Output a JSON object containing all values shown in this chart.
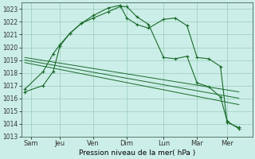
{
  "xlabel": "Pression niveau de la mer( hPa )",
  "background_color": "#cceee8",
  "grid_color": "#99ccbb",
  "line_color": "#1a6b2a",
  "ylim": [
    1013,
    1023.5
  ],
  "xlim": [
    -0.1,
    6.8
  ],
  "xtick_labels": [
    "Sam",
    "Jeu",
    "Ven",
    "Dim",
    "Lun",
    "Mar",
    "Mer"
  ],
  "xtick_positions": [
    0.18,
    1.05,
    2.05,
    3.05,
    4.15,
    5.15,
    6.05
  ],
  "ytick_values": [
    1013,
    1014,
    1015,
    1016,
    1017,
    1018,
    1019,
    1020,
    1021,
    1022,
    1023
  ],
  "series": [
    {
      "x": [
        0.0,
        0.55,
        0.85,
        1.05,
        1.35,
        1.7,
        2.05,
        2.5,
        2.85,
        3.05,
        3.35,
        3.7,
        4.15,
        4.5,
        4.85,
        5.15,
        5.5,
        5.85,
        6.05,
        6.4
      ],
      "y": [
        1016.5,
        1017.0,
        1018.1,
        1020.1,
        1021.1,
        1021.9,
        1022.3,
        1022.8,
        1023.2,
        1023.2,
        1022.4,
        1021.8,
        1019.2,
        1019.1,
        1019.3,
        1017.2,
        1016.9,
        1016.1,
        1014.2,
        1013.6
      ],
      "marker": true
    },
    {
      "x": [
        0.0,
        0.55,
        0.85,
        1.05,
        1.35,
        1.7,
        2.05,
        2.5,
        2.85,
        3.05,
        3.35,
        3.7,
        4.15,
        4.5,
        4.85,
        5.15,
        5.5,
        5.85,
        6.05,
        6.4
      ],
      "y": [
        1016.7,
        1018.1,
        1019.5,
        1020.2,
        1021.1,
        1021.9,
        1022.5,
        1023.1,
        1023.3,
        1022.3,
        1021.8,
        1021.5,
        1022.2,
        1022.3,
        1021.7,
        1019.2,
        1019.1,
        1018.5,
        1014.1,
        1013.7
      ],
      "marker": true
    },
    {
      "x": [
        0.0,
        6.4
      ],
      "y": [
        1019.2,
        1016.5
      ],
      "marker": false
    },
    {
      "x": [
        0.0,
        6.4
      ],
      "y": [
        1019.0,
        1016.0
      ],
      "marker": false
    },
    {
      "x": [
        0.0,
        6.4
      ],
      "y": [
        1018.8,
        1015.5
      ],
      "marker": false
    }
  ]
}
